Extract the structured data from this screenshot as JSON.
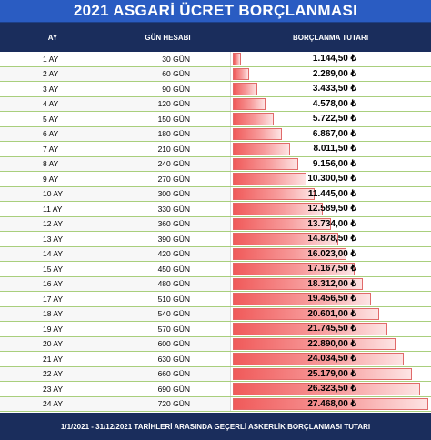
{
  "title": "2021 ASGARİ ÜCRET BORÇLANMASI",
  "columns": [
    "AY",
    "GÜN HESABI",
    "BORÇLANMA TUTARI"
  ],
  "rows": [
    {
      "ay": "1 AY",
      "gun": "30 GÜN",
      "tutar": "1.144,50 ₺",
      "fraction": 0.0417
    },
    {
      "ay": "2 AY",
      "gun": "60 GÜN",
      "tutar": "2.289,00 ₺",
      "fraction": 0.0833
    },
    {
      "ay": "3 AY",
      "gun": "90 GÜN",
      "tutar": "3.433,50 ₺",
      "fraction": 0.125
    },
    {
      "ay": "4 AY",
      "gun": "120 GÜN",
      "tutar": "4.578,00 ₺",
      "fraction": 0.1667
    },
    {
      "ay": "5 AY",
      "gun": "150 GÜN",
      "tutar": "5.722,50 ₺",
      "fraction": 0.2083
    },
    {
      "ay": "6 AY",
      "gun": "180 GÜN",
      "tutar": "6.867,00 ₺",
      "fraction": 0.25
    },
    {
      "ay": "7 AY",
      "gun": "210 GÜN",
      "tutar": "8.011,50 ₺",
      "fraction": 0.2917
    },
    {
      "ay": "8 AY",
      "gun": "240 GÜN",
      "tutar": "9.156,00 ₺",
      "fraction": 0.3333
    },
    {
      "ay": "9 AY",
      "gun": "270 GÜN",
      "tutar": "10.300,50 ₺",
      "fraction": 0.375
    },
    {
      "ay": "10 AY",
      "gun": "300 GÜN",
      "tutar": "11.445,00 ₺",
      "fraction": 0.4167
    },
    {
      "ay": "11 AY",
      "gun": "330 GÜN",
      "tutar": "12.589,50 ₺",
      "fraction": 0.4583
    },
    {
      "ay": "12 AY",
      "gun": "360 GÜN",
      "tutar": "13.734,00 ₺",
      "fraction": 0.5
    },
    {
      "ay": "13 AY",
      "gun": "390 GÜN",
      "tutar": "14.878,50 ₺",
      "fraction": 0.5417
    },
    {
      "ay": "14 AY",
      "gun": "420 GÜN",
      "tutar": "16.023,00 ₺",
      "fraction": 0.5833
    },
    {
      "ay": "15 AY",
      "gun": "450 GÜN",
      "tutar": "17.167,50 ₺",
      "fraction": 0.625
    },
    {
      "ay": "16 AY",
      "gun": "480 GÜN",
      "tutar": "18.312,00 ₺",
      "fraction": 0.6667
    },
    {
      "ay": "17 AY",
      "gun": "510 GÜN",
      "tutar": "19.456,50 ₺",
      "fraction": 0.7083
    },
    {
      "ay": "18 AY",
      "gun": "540 GÜN",
      "tutar": "20.601,00 ₺",
      "fraction": 0.75
    },
    {
      "ay": "19 AY",
      "gun": "570 GÜN",
      "tutar": "21.745,50 ₺",
      "fraction": 0.7917
    },
    {
      "ay": "20 AY",
      "gun": "600 GÜN",
      "tutar": "22.890,00 ₺",
      "fraction": 0.8333
    },
    {
      "ay": "21 AY",
      "gun": "630 GÜN",
      "tutar": "24.034,50 ₺",
      "fraction": 0.875
    },
    {
      "ay": "22 AY",
      "gun": "660 GÜN",
      "tutar": "25.179,00 ₺",
      "fraction": 0.9167
    },
    {
      "ay": "23 AY",
      "gun": "690 GÜN",
      "tutar": "26.323,50 ₺",
      "fraction": 0.9583
    },
    {
      "ay": "24 AY",
      "gun": "720 GÜN",
      "tutar": "27.468,00 ₺",
      "fraction": 1.0
    }
  ],
  "footer": "1/1/2021 - 31/12/2021 TARİHLERİ ARASINDA GEÇERLİ ASKERLİK BORÇLANMASI TUTARI",
  "colors": {
    "title_bg": "#2a5cc2",
    "header_bg": "#1a2d5c",
    "bar": "#f05a5a",
    "row_border": "#a9cf7d"
  }
}
